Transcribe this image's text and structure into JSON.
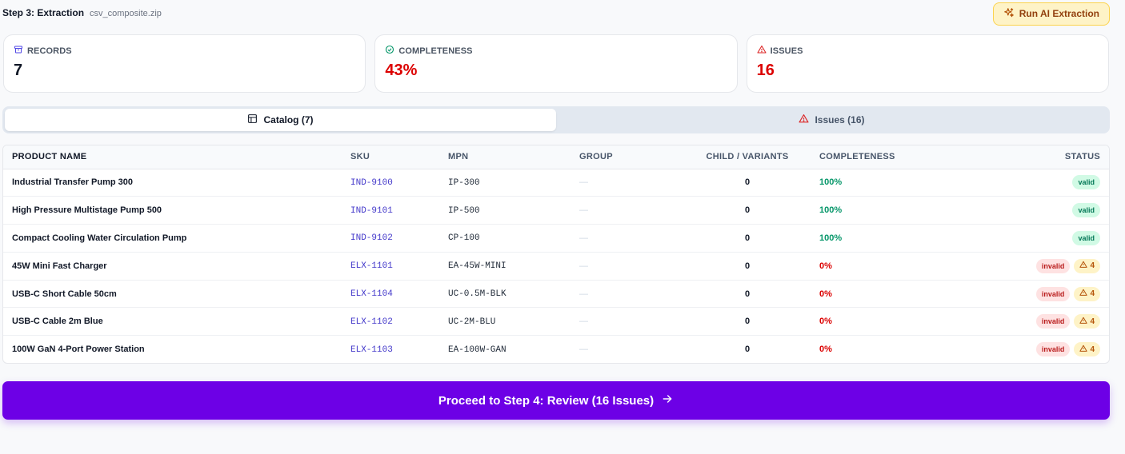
{
  "header": {
    "step_title": "Step 3: Extraction",
    "file_name": "csv_composite.zip",
    "run_button": "Run AI Extraction"
  },
  "stats": {
    "records": {
      "label": "RECORDS",
      "value": "7",
      "icon": "box-icon"
    },
    "completeness": {
      "label": "COMPLETENESS",
      "value": "43%",
      "icon": "check-circle-icon"
    },
    "issues": {
      "label": "ISSUES",
      "value": "16",
      "icon": "warning-triangle-icon"
    }
  },
  "tabs": [
    {
      "label": "Catalog (7)",
      "icon": "table-icon",
      "active": true
    },
    {
      "label": "Issues (16)",
      "icon": "warning-triangle-icon",
      "active": false
    }
  ],
  "table": {
    "columns": [
      "PRODUCT NAME",
      "SKU",
      "MPN",
      "GROUP",
      "CHILD / VARIANTS",
      "COMPLETENESS",
      "STATUS"
    ],
    "rows": [
      {
        "name": "Industrial Transfer Pump 300",
        "sku": "IND-9100",
        "mpn": "IP-300",
        "group": "—",
        "child": "0",
        "completeness": "100%",
        "status": "valid",
        "issues": ""
      },
      {
        "name": "High Pressure Multistage Pump 500",
        "sku": "IND-9101",
        "mpn": "IP-500",
        "group": "—",
        "child": "0",
        "completeness": "100%",
        "status": "valid",
        "issues": ""
      },
      {
        "name": "Compact Cooling Water Circulation Pump",
        "sku": "IND-9102",
        "mpn": "CP-100",
        "group": "—",
        "child": "0",
        "completeness": "100%",
        "status": "valid",
        "issues": ""
      },
      {
        "name": "45W Mini Fast Charger",
        "sku": "ELX-1101",
        "mpn": "EA-45W-MINI",
        "group": "—",
        "child": "0",
        "completeness": "0%",
        "status": "invalid",
        "issues": "4"
      },
      {
        "name": "USB-C Short Cable 50cm",
        "sku": "ELX-1104",
        "mpn": "UC-0.5M-BLK",
        "group": "—",
        "child": "0",
        "completeness": "0%",
        "status": "invalid",
        "issues": "4"
      },
      {
        "name": "USB-C Cable 2m Blue",
        "sku": "ELX-1102",
        "mpn": "UC-2M-BLU",
        "group": "—",
        "child": "0",
        "completeness": "0%",
        "status": "invalid",
        "issues": "4"
      },
      {
        "name": "100W GaN 4-Port Power Station",
        "sku": "ELX-1103",
        "mpn": "EA-100W-GAN",
        "group": "—",
        "child": "0",
        "completeness": "0%",
        "status": "invalid",
        "issues": "4"
      }
    ]
  },
  "proceed_button": "Proceed to Step 4: Review (16 Issues)",
  "colors": {
    "accent": "#6d00e6",
    "danger": "#dc0000",
    "success": "#059669",
    "warning_bg": "#fef3c7"
  }
}
